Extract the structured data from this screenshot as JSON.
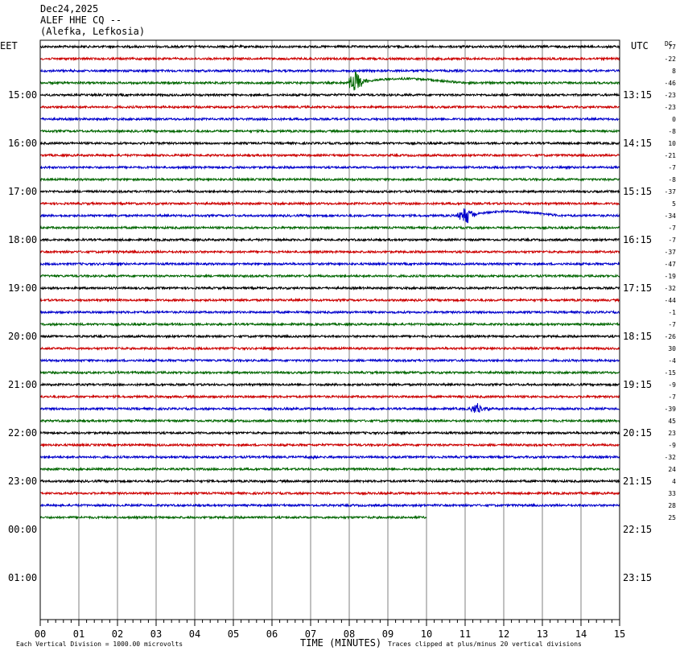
{
  "header": {
    "date": "Dec24,2025",
    "channel": "ALEF HHE CQ --",
    "location": "(Alefka, Lefkosia)"
  },
  "labels": {
    "left_tz": "EET",
    "right_tz": "UTC",
    "dc": "DC",
    "xlabel": "TIME (MINUTES)",
    "scale_note": "Each Vertical Division = 1000.00 microvolts",
    "clip_note": "Traces clipped at plus/minus 20 vertical divisions"
  },
  "colors": {
    "cycle": [
      "#000000",
      "#cc0000",
      "#0000cc",
      "#006600"
    ],
    "grid": "#808080"
  },
  "chart_data": {
    "type": "line",
    "title": "ALEF HHE CQ --",
    "xlabel": "TIME (MINUTES)",
    "xlim": [
      0,
      15
    ],
    "x_ticks": [
      "00",
      "01",
      "02",
      "03",
      "04",
      "05",
      "06",
      "07",
      "08",
      "09",
      "10",
      "11",
      "12",
      "13",
      "14",
      "15"
    ],
    "rows_per_hour": 4,
    "left_hour_labels": [
      "15:00",
      "16:00",
      "17:00",
      "18:00",
      "19:00",
      "20:00",
      "21:00",
      "22:00",
      "23:00",
      "00:00",
      "01:00"
    ],
    "right_hour_labels": [
      "13:15",
      "14:15",
      "15:15",
      "16:15",
      "17:15",
      "18:15",
      "19:15",
      "20:15",
      "21:15",
      "22:15",
      "23:15"
    ],
    "dc_offsets": [
      "77",
      "-22",
      "8",
      "-46",
      "-23",
      "-23",
      "0",
      "-8",
      "10",
      "-21",
      "-7",
      "-8",
      "-37",
      "5",
      "-34",
      "-7",
      "-7",
      "-37",
      "-47",
      "-19",
      "-32",
      "-44",
      "-1",
      "-7",
      "-26",
      "30",
      "-4",
      "-15",
      "-9",
      "-7",
      "-39",
      "45",
      "23",
      "-9",
      "-32",
      "24",
      "4",
      "33",
      "28",
      "25"
    ],
    "last_trace_end_minute": 10.0,
    "events": [
      {
        "row": 3,
        "start_minute": 8.0,
        "peak_minute": 8.15,
        "amplitude_div": 1.0,
        "tail_end_minute": 11.0
      },
      {
        "row": 14,
        "start_minute": 10.8,
        "peak_minute": 11.0,
        "amplitude_div": 0.9,
        "tail_end_minute": 13.5
      },
      {
        "row": 30,
        "start_minute": 11.1,
        "peak_minute": 11.3,
        "amplitude_div": 0.5
      },
      {
        "row": 34,
        "start_minute": 6.5,
        "peak_minute": 7.1,
        "amplitude_div": 0.15
      }
    ]
  }
}
